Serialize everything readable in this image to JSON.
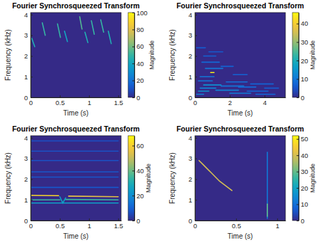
{
  "chart_data": [
    {
      "type": "spectrogram",
      "title": "Fourier Synchrosqueezed Transform",
      "x_label": "Time (s)",
      "y_label": "Frequency (kHz)",
      "colorbar_label": "Magnitude",
      "xlim": [
        0,
        1.55
      ],
      "xticks": [
        0,
        0.5,
        1,
        1.5
      ],
      "ylim": [
        0,
        4.1
      ],
      "yticks": [
        0,
        1,
        2,
        3,
        4
      ],
      "colorbar_range": [
        0,
        100
      ],
      "colorbar_ticks": [
        0,
        20,
        40,
        60,
        80,
        100
      ],
      "series": [
        {
          "x": [
            0.02,
            0.07
          ],
          "values": [
            2.85,
            2.45
          ],
          "magnitude": 45
        },
        {
          "x": [
            0.2,
            0.25
          ],
          "values": [
            3.6,
            3.0
          ],
          "magnitude": 50
        },
        {
          "x": [
            0.46,
            0.51
          ],
          "values": [
            3.55,
            2.9
          ],
          "magnitude": 50
        },
        {
          "x": [
            0.58,
            0.63
          ],
          "values": [
            3.2,
            2.7
          ],
          "magnitude": 40
        },
        {
          "x": [
            0.84,
            0.88
          ],
          "values": [
            3.9,
            3.3
          ],
          "magnitude": 55
        },
        {
          "x": [
            0.93,
            0.98
          ],
          "values": [
            3.15,
            2.65
          ],
          "magnitude": 45
        },
        {
          "x": [
            1.04,
            1.09
          ],
          "values": [
            3.7,
            3.05
          ],
          "magnitude": 50
        },
        {
          "x": [
            1.2,
            1.25
          ],
          "values": [
            3.75,
            3.15
          ],
          "magnitude": 50
        },
        {
          "x": [
            1.33,
            1.38
          ],
          "values": [
            3.2,
            2.6
          ],
          "magnitude": 45
        }
      ]
    },
    {
      "type": "spectrogram",
      "title": "Fourier Synchrosqueezed Transform",
      "x_label": "Time (s)",
      "y_label": "Frequency (kHz)",
      "colorbar_label": "Magnitude",
      "xlim": [
        0,
        5.2
      ],
      "xticks": [
        0,
        2,
        4
      ],
      "ylim": [
        0,
        4.1
      ],
      "yticks": [
        0,
        1,
        2,
        3,
        4
      ],
      "colorbar_range": [
        0,
        46
      ],
      "colorbar_ticks": [
        0,
        10,
        20,
        30,
        40
      ],
      "series": [
        {
          "x": [
            0.1,
            0.5
          ],
          "values": [
            0.15,
            0.15
          ],
          "magnitude": 12
        },
        {
          "x": [
            0.2,
            0.8
          ],
          "values": [
            0.3,
            0.3
          ],
          "magnitude": 15
        },
        {
          "x": [
            0.3,
            1.2
          ],
          "values": [
            0.45,
            0.45
          ],
          "magnitude": 12
        },
        {
          "x": [
            0.5,
            1.5
          ],
          "values": [
            0.6,
            0.6
          ],
          "magnitude": 14
        },
        {
          "x": [
            0.2,
            1.0
          ],
          "values": [
            0.8,
            0.8
          ],
          "magnitude": 10
        },
        {
          "x": [
            0.3,
            1.1
          ],
          "values": [
            1.0,
            1.0
          ],
          "magnitude": 10
        },
        {
          "x": [
            0.6,
            1.6
          ],
          "values": [
            1.4,
            1.4
          ],
          "magnitude": 10
        },
        {
          "x": [
            0.4,
            1.4
          ],
          "values": [
            1.7,
            1.7
          ],
          "magnitude": 8
        },
        {
          "x": [
            0.5,
            1.2
          ],
          "values": [
            2.0,
            2.0
          ],
          "magnitude": 7
        },
        {
          "x": [
            1.2,
            2.5
          ],
          "values": [
            0.35,
            0.35
          ],
          "magnitude": 12
        },
        {
          "x": [
            1.5,
            2.8
          ],
          "values": [
            0.55,
            0.55
          ],
          "magnitude": 10
        },
        {
          "x": [
            1.8,
            3.0
          ],
          "values": [
            0.75,
            0.75
          ],
          "magnitude": 9
        },
        {
          "x": [
            2.0,
            3.2
          ],
          "values": [
            0.2,
            0.2
          ],
          "magnitude": 11
        },
        {
          "x": [
            2.5,
            3.5
          ],
          "values": [
            0.5,
            0.5
          ],
          "magnitude": 8
        },
        {
          "x": [
            3.0,
            4.2
          ],
          "values": [
            0.3,
            0.3
          ],
          "magnitude": 8
        },
        {
          "x": [
            3.2,
            4.5
          ],
          "values": [
            0.65,
            0.65
          ],
          "magnitude": 7
        },
        {
          "x": [
            3.5,
            4.6
          ],
          "values": [
            0.15,
            0.15
          ],
          "magnitude": 8
        },
        {
          "x": [
            2.2,
            3.0
          ],
          "values": [
            1.1,
            1.1
          ],
          "magnitude": 7
        },
        {
          "x": [
            1.5,
            2.2
          ],
          "values": [
            1.5,
            1.5
          ],
          "magnitude": 7
        },
        {
          "x": [
            4.0,
            4.8
          ],
          "values": [
            0.45,
            0.45
          ],
          "magnitude": 6
        },
        {
          "x": [
            0.1,
            0.6
          ],
          "values": [
            2.4,
            2.4
          ],
          "magnitude": 6
        },
        {
          "x": [
            0.8,
            1.6
          ],
          "values": [
            2.2,
            2.2
          ],
          "magnitude": 6
        },
        {
          "x": [
            0.9,
            1.1
          ],
          "values": [
            1.2,
            1.2
          ],
          "magnitude": 45
        }
      ]
    },
    {
      "type": "spectrogram",
      "title": "Fourier Synchrosqueezed Transform",
      "x_label": "Time (s)",
      "y_label": "Frequency (kHz)",
      "colorbar_label": "Magnitude",
      "xlim": [
        0,
        1.55
      ],
      "xticks": [
        0,
        0.5,
        1,
        1.5
      ],
      "ylim": [
        0,
        4.1
      ],
      "yticks": [
        0,
        1,
        2,
        3,
        4
      ],
      "colorbar_range": [
        0,
        68
      ],
      "colorbar_ticks": [
        0,
        20,
        40,
        60
      ],
      "series": [
        {
          "x": [
            0,
            1.5
          ],
          "values": [
            2.1,
            2.1
          ],
          "magnitude": 8
        },
        {
          "x": [
            0,
            1.5
          ],
          "values": [
            2.35,
            2.35
          ],
          "magnitude": 8
        },
        {
          "x": [
            0,
            1.5
          ],
          "values": [
            2.9,
            2.9
          ],
          "magnitude": 7
        },
        {
          "x": [
            0,
            1.5
          ],
          "values": [
            3.35,
            3.35
          ],
          "magnitude": 7
        },
        {
          "x": [
            0,
            1.5
          ],
          "values": [
            3.85,
            3.85
          ],
          "magnitude": 7
        },
        {
          "x": [
            0,
            1.5
          ],
          "values": [
            1.6,
            1.6
          ],
          "magnitude": 8
        },
        {
          "x": [
            0,
            1.5
          ],
          "values": [
            0.85,
            0.85
          ],
          "magnitude": 25
        },
        {
          "x": [
            0,
            0.5
          ],
          "values": [
            1.0,
            1.0
          ],
          "magnitude": 35
        },
        {
          "x": [
            0.6,
            1.5
          ],
          "values": [
            1.02,
            1.0
          ],
          "magnitude": 35
        },
        {
          "x": [
            0.5,
            0.55,
            0.6
          ],
          "values": [
            1.15,
            0.85,
            1.1
          ],
          "magnitude": 25
        },
        {
          "x": [
            0,
            0.48
          ],
          "values": [
            1.22,
            1.2
          ],
          "magnitude": 62
        },
        {
          "x": [
            0.65,
            1.5
          ],
          "values": [
            1.18,
            1.15
          ],
          "magnitude": 55
        }
      ]
    },
    {
      "type": "spectrogram",
      "title": "Fourier Synchrosqueezed Transform",
      "x_label": "Time (s)",
      "y_label": "Frequency (kHz)",
      "colorbar_label": "Magnitude",
      "xlim": [
        0,
        1.1
      ],
      "xticks": [
        0,
        0.5,
        1
      ],
      "ylim": [
        0,
        4.1
      ],
      "yticks": [
        0,
        1,
        2,
        3,
        4
      ],
      "colorbar_range": [
        0,
        52
      ],
      "colorbar_ticks": [
        0,
        10,
        20,
        30,
        40,
        50
      ],
      "series": [
        {
          "x": [
            0.05,
            0.1,
            0.15,
            0.2,
            0.25,
            0.3,
            0.35,
            0.4,
            0.45
          ],
          "values": [
            2.9,
            2.7,
            2.5,
            2.3,
            2.1,
            1.9,
            1.75,
            1.6,
            1.45
          ],
          "magnitude": 40
        },
        {
          "x": [
            0.88,
            0.88
          ],
          "values": [
            0.1,
            3.3
          ],
          "magnitude": 12
        },
        {
          "x": [
            0.88,
            0.88
          ],
          "values": [
            0.2,
            0.8
          ],
          "magnitude": 30
        }
      ]
    }
  ]
}
